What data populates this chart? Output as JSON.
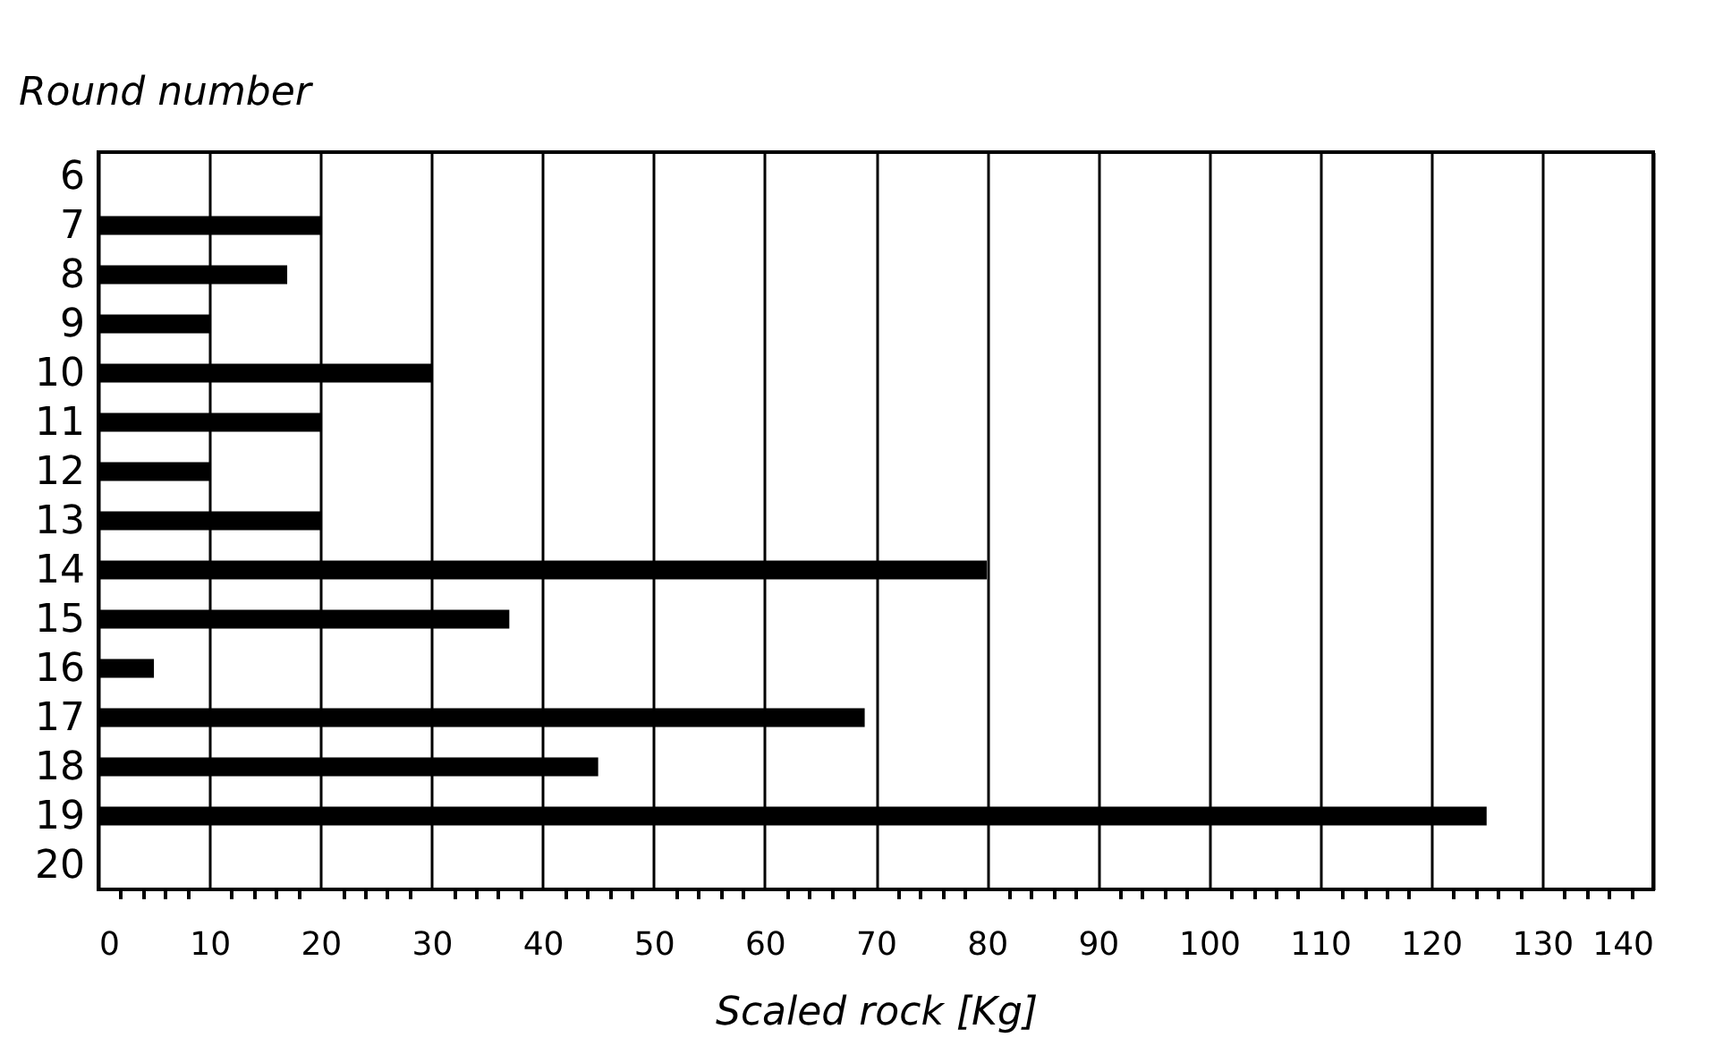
{
  "chart_data": {
    "type": "bar",
    "orientation": "horizontal",
    "xlabel": "Scaled rock [Kg]",
    "ylabel": "Round number",
    "categories": [
      "6",
      "7",
      "8",
      "9",
      "10",
      "11",
      "12",
      "13",
      "14",
      "15",
      "16",
      "17",
      "18",
      "19",
      "20"
    ],
    "values": [
      null,
      20,
      17,
      10,
      30,
      20,
      10,
      20,
      80,
      37,
      5,
      69,
      45,
      125,
      null
    ],
    "color": "#000000",
    "xlim": [
      0,
      140
    ],
    "xticks": [
      0,
      {
        "value": 2,
        "label": null
      },
      {
        "value": 4,
        "label": null
      },
      {
        "value": 6,
        "label": null
      },
      {
        "value": 8,
        "label": null
      },
      10,
      {
        "value": 12,
        "label": null
      },
      {
        "value": 14,
        "label": null
      },
      {
        "value": 16,
        "label": null
      },
      {
        "value": 18,
        "label": null
      },
      20,
      {
        "value": 22,
        "label": null
      },
      {
        "value": 24,
        "label": null
      },
      {
        "value": 26,
        "label": null
      },
      {
        "value": 28,
        "label": null
      },
      30,
      {
        "value": 32,
        "label": null
      },
      {
        "value": 34,
        "label": null
      },
      {
        "value": 36,
        "label": null
      },
      {
        "value": 38,
        "label": null
      },
      40,
      {
        "value": 42,
        "label": null
      },
      {
        "value": 44,
        "label": null
      },
      {
        "value": 46,
        "label": null
      },
      {
        "value": 48,
        "label": null
      },
      50,
      {
        "value": 52,
        "label": null
      },
      {
        "value": 54,
        "label": null
      },
      {
        "value": 56,
        "label": null
      },
      {
        "value": 58,
        "label": null
      },
      60,
      {
        "value": 62,
        "label": null
      },
      {
        "value": 64,
        "label": null
      },
      {
        "value": 66,
        "label": null
      },
      {
        "value": 68,
        "label": null
      },
      70,
      {
        "value": 72,
        "label": null
      },
      {
        "value": 74,
        "label": null
      },
      {
        "value": 76,
        "label": null
      },
      {
        "value": 78,
        "label": null
      },
      80,
      {
        "value": 82,
        "label": null
      },
      {
        "value": 84,
        "label": null
      },
      {
        "value": 86,
        "label": null
      },
      {
        "value": 88,
        "label": null
      },
      90,
      {
        "value": 92,
        "label": null
      },
      {
        "value": 94,
        "label": null
      },
      {
        "value": 96,
        "label": null
      },
      {
        "value": 98,
        "label": null
      },
      100,
      {
        "value": 102,
        "label": null
      },
      {
        "value": 104,
        "label": null
      },
      {
        "value": 106,
        "label": null
      },
      {
        "value": 108,
        "label": null
      },
      110,
      {
        "value": 112,
        "label": null
      },
      {
        "value": 114,
        "label": null
      },
      {
        "value": 116,
        "label": null
      },
      {
        "value": 118,
        "label": null
      },
      120,
      {
        "value": 122,
        "label": null
      },
      {
        "value": 124,
        "label": null
      },
      {
        "value": 126,
        "label": null
      },
      {
        "value": 128,
        "label": null
      },
      130,
      {
        "value": 132,
        "label": null
      },
      {
        "value": 134,
        "label": null
      },
      {
        "value": 136,
        "label": null
      },
      {
        "value": 138,
        "label": null
      },
      140
    ],
    "grid": "x"
  }
}
